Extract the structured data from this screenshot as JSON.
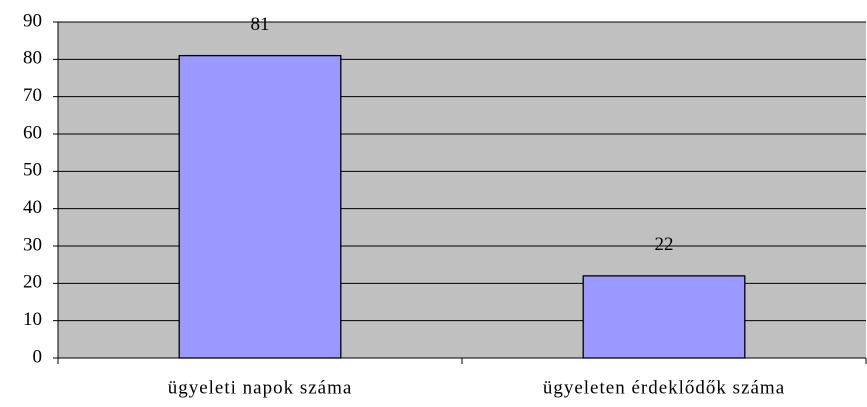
{
  "chart_data": {
    "type": "bar",
    "categories": [
      "ügyeleti napok száma",
      "ügyeleten érdeklődők száma"
    ],
    "values": [
      81,
      22
    ],
    "color": "#9999ff",
    "ylim": [
      0,
      90
    ],
    "yticks": [
      0,
      10,
      20,
      30,
      40,
      50,
      60,
      70,
      80,
      90
    ],
    "grid": true
  }
}
